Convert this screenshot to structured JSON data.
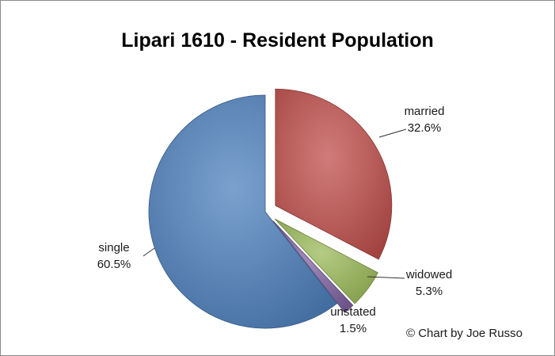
{
  "chart_data": {
    "type": "pie",
    "title": "Lipari 1610 - Resident Population",
    "slices": [
      {
        "label": "married",
        "value": 32.6,
        "value_label": "32.6%",
        "color": "#c0504d",
        "exploded": true
      },
      {
        "label": "widowed",
        "value": 5.3,
        "value_label": "5.3%",
        "color": "#9bbb59",
        "exploded": true
      },
      {
        "label": "unstated",
        "value": 1.5,
        "value_label": "1.5%",
        "color": "#8064a2",
        "exploded": true
      },
      {
        "label": "single",
        "value": 60.5,
        "value_label": "60.5%",
        "color": "#4f81bd",
        "exploded": false
      }
    ],
    "start_angle": "12 o'clock",
    "direction": "clockwise",
    "legend": "none",
    "data_labels": "outside-with-leader-lines"
  },
  "credit": "© Chart by Joe Russo"
}
